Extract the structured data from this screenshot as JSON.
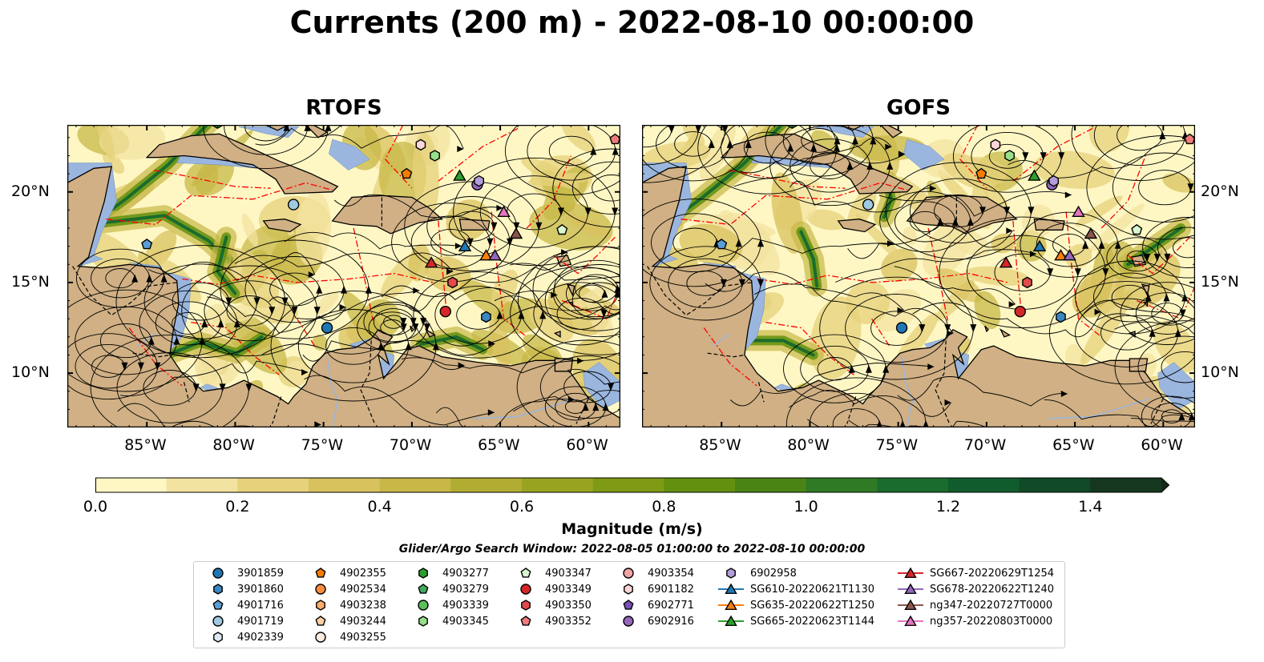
{
  "title": "Currents (200 m) - 2022-08-10 00:00:00",
  "panels": [
    {
      "title": "RTOFS"
    },
    {
      "title": "GOFS"
    }
  ],
  "axes": {
    "lon_ticks": [
      "85°W",
      "80°W",
      "75°W",
      "70°W",
      "65°W",
      "60°W"
    ],
    "lat_ticks": [
      "20°N",
      "15°N",
      "10°N"
    ],
    "lon_range": [
      -89.5,
      -58.2
    ],
    "lat_range": [
      7.0,
      23.7
    ]
  },
  "colorbar": {
    "label": "Magnitude (m/s)",
    "ticks": [
      "0.0",
      "0.2",
      "0.4",
      "0.6",
      "0.8",
      "1.0",
      "1.2",
      "1.4"
    ],
    "range": [
      0.0,
      1.5
    ],
    "colors": [
      "#fef7c4",
      "#f3e3a0",
      "#e6d27b",
      "#d8c25e",
      "#c7b848",
      "#b1ad32",
      "#98a420",
      "#7f9a14",
      "#63900f",
      "#4a8415",
      "#2f7a24",
      "#196c2c",
      "#105c2c",
      "#104a26",
      "#15371f",
      "#152a18"
    ]
  },
  "search_window": "Glider/Argo Search Window: 2022-08-05 01:00:00 to 2022-08-10 00:00:00",
  "map_colors": {
    "land": "#d0b084",
    "shelf": "#9ab6df",
    "border": "#ff0000"
  },
  "legend": {
    "columns": [
      [
        {
          "label": "3901859",
          "marker": "circle",
          "color": "#1f77b4"
        },
        {
          "label": "3901860",
          "marker": "hexagon",
          "color": "#3a86c0"
        },
        {
          "label": "4901716",
          "marker": "pentagon",
          "color": "#5a9ed4"
        },
        {
          "label": "4901719",
          "marker": "circle",
          "color": "#9ecae1"
        },
        {
          "label": "4902339",
          "marker": "hexagon",
          "color": "#deebf7"
        }
      ],
      [
        {
          "label": "4902355",
          "marker": "pentagon",
          "color": "#f57c00"
        },
        {
          "label": "4902534",
          "marker": "circle",
          "color": "#fd8d3c"
        },
        {
          "label": "4903238",
          "marker": "hexagon",
          "color": "#fdae6b"
        },
        {
          "label": "4903244",
          "marker": "pentagon",
          "color": "#fdd0a2"
        },
        {
          "label": "4903255",
          "marker": "circle",
          "color": "#feedde"
        }
      ],
      [
        {
          "label": "4903277",
          "marker": "hexagon",
          "color": "#2ca02c"
        },
        {
          "label": "4903279",
          "marker": "pentagon",
          "color": "#41ab5d"
        },
        {
          "label": "4903339",
          "marker": "circle",
          "color": "#5cc05c"
        },
        {
          "label": "4903345",
          "marker": "hexagon",
          "color": "#98df8a"
        }
      ],
      [
        {
          "label": "4903347",
          "marker": "pentagon",
          "color": "#d9f7d0"
        },
        {
          "label": "4903349",
          "marker": "circle",
          "color": "#d62728"
        },
        {
          "label": "4903350",
          "marker": "hexagon",
          "color": "#e34a4b"
        },
        {
          "label": "4903352",
          "marker": "pentagon",
          "color": "#f07a7a"
        }
      ],
      [
        {
          "label": "4903354",
          "marker": "circle",
          "color": "#f4a3a3"
        },
        {
          "label": "6901182",
          "marker": "hexagon",
          "color": "#fcd5d5"
        },
        {
          "label": "6902771",
          "marker": "pentagon",
          "color": "#7b4fb5"
        },
        {
          "label": "6902916",
          "marker": "circle",
          "color": "#9467bd"
        }
      ],
      [
        {
          "label": "6902958",
          "marker": "hexagon",
          "color": "#b39ddb"
        },
        {
          "label": "SG610-20220621T1130",
          "marker": "triangle-line",
          "color": "#1f77b4"
        },
        {
          "label": "SG635-20220622T1250",
          "marker": "triangle-line",
          "color": "#ff7f0e"
        },
        {
          "label": "SG665-20220623T1144",
          "marker": "triangle-line",
          "color": "#2ca02c"
        }
      ],
      [
        {
          "label": "SG667-20220629T1254",
          "marker": "triangle-line",
          "color": "#d62728"
        },
        {
          "label": "SG678-20220622T1240",
          "marker": "triangle-line",
          "color": "#9467bd"
        },
        {
          "label": "ng347-20220727T0000",
          "marker": "triangle-line",
          "color": "#8c564b"
        },
        {
          "label": "ng357-20220803T0000",
          "marker": "triangle-line",
          "color": "#e377c2"
        }
      ]
    ]
  },
  "floats": [
    {
      "id": "3901859",
      "lon": -74.8,
      "lat": 12.5,
      "marker": "circle",
      "color": "#1f77b4"
    },
    {
      "id": "3901860",
      "lon": -65.8,
      "lat": 13.1,
      "marker": "hexagon",
      "color": "#3a86c0"
    },
    {
      "id": "4901716",
      "lon": -85.0,
      "lat": 17.1,
      "marker": "pentagon",
      "color": "#5a9ed4"
    },
    {
      "id": "4901719",
      "lon": -76.7,
      "lat": 19.3,
      "marker": "circle",
      "color": "#9ecae1"
    },
    {
      "id": "4902355",
      "lon": -70.3,
      "lat": 21.0,
      "marker": "pentagon",
      "color": "#f57c00"
    },
    {
      "id": "4903277",
      "lon": -81.0,
      "lat": 23.8,
      "marker": "hexagon",
      "color": "#2ca02c"
    },
    {
      "id": "4903345",
      "lon": -68.7,
      "lat": 22.0,
      "marker": "hexagon",
      "color": "#98df8a"
    },
    {
      "id": "4903347",
      "lon": -61.5,
      "lat": 17.9,
      "marker": "pentagon",
      "color": "#d9f7d0"
    },
    {
      "id": "4903349",
      "lon": -68.1,
      "lat": 13.4,
      "marker": "circle",
      "color": "#d62728"
    },
    {
      "id": "4903350",
      "lon": -67.7,
      "lat": 15.0,
      "marker": "hexagon",
      "color": "#e34a4b"
    },
    {
      "id": "4903352",
      "lon": -58.5,
      "lat": 22.9,
      "marker": "pentagon",
      "color": "#f07a7a"
    },
    {
      "id": "6901182",
      "lon": -69.5,
      "lat": 22.6,
      "marker": "hexagon",
      "color": "#fcd5d5"
    },
    {
      "id": "6902916",
      "lon": -66.3,
      "lat": 20.4,
      "marker": "circle",
      "color": "#9467bd"
    },
    {
      "id": "6902958",
      "lon": -66.2,
      "lat": 20.6,
      "marker": "hexagon",
      "color": "#b39ddb"
    },
    {
      "id": "SG610",
      "lon": -67.0,
      "lat": 17.0,
      "marker": "triangle",
      "color": "#1f77b4"
    },
    {
      "id": "SG635",
      "lon": -65.8,
      "lat": 16.5,
      "marker": "triangle",
      "color": "#ff7f0e"
    },
    {
      "id": "SG665",
      "lon": -67.3,
      "lat": 20.9,
      "marker": "triangle",
      "color": "#2ca02c"
    },
    {
      "id": "SG667",
      "lon": -68.9,
      "lat": 16.1,
      "marker": "triangle",
      "color": "#d62728"
    },
    {
      "id": "SG678",
      "lon": -65.3,
      "lat": 16.5,
      "marker": "triangle",
      "color": "#9467bd"
    },
    {
      "id": "ng347",
      "lon": -64.1,
      "lat": 17.7,
      "marker": "triangle",
      "color": "#8c564b"
    },
    {
      "id": "ng357",
      "lon": -64.8,
      "lat": 18.9,
      "marker": "triangle",
      "color": "#e377c2"
    }
  ]
}
